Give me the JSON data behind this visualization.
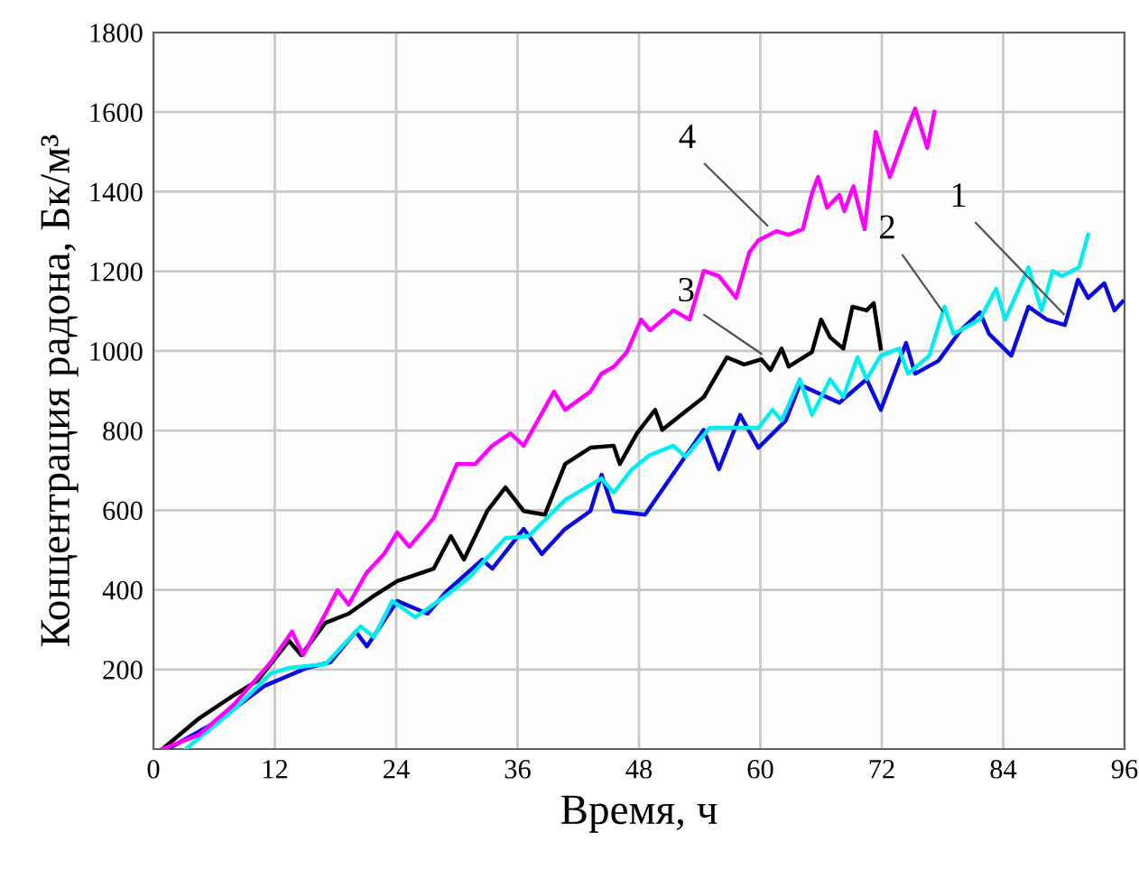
{
  "chart_data": {
    "type": "line",
    "xlabel": "Время, ч",
    "ylabel": "Концентрация радона, Бк/м³",
    "xlim": [
      0,
      96
    ],
    "xticks": [
      0,
      12,
      24,
      36,
      48,
      60,
      72,
      84,
      96
    ],
    "ylim": [
      0,
      1800
    ],
    "yticks": [
      200,
      400,
      600,
      800,
      1000,
      1200,
      1400,
      1600,
      1800
    ],
    "grid": true,
    "marker": "none",
    "line_style": "solid",
    "series": [
      {
        "color": "#0a0ae0",
        "x": [
          1.4,
          6.2,
          11,
          15.2,
          17.5,
          20,
          21.1,
          24.1,
          27.1,
          28.9,
          32.5,
          33.5,
          36.6,
          38.4,
          40.7,
          43.2,
          44.3,
          45.5,
          48.6,
          54.4,
          55.9,
          58,
          59.8,
          62.5,
          63.9,
          67.8,
          70.5,
          71.9,
          74.4,
          75.3,
          77.6,
          79.8,
          81.7,
          82.6,
          84.8,
          86.5,
          88.3,
          90.1,
          91.4,
          92.4,
          94,
          95,
          95.8
        ],
        "values": [
          0,
          68,
          159,
          204,
          218,
          295,
          258,
          372,
          340,
          394,
          476,
          453,
          553,
          490,
          553,
          598,
          689,
          598,
          589,
          802,
          703,
          839,
          757,
          825,
          915,
          870,
          929,
          852,
          1020,
          943,
          975,
          1052,
          1097,
          1043,
          988,
          1111,
          1079,
          1065,
          1179,
          1133,
          1170,
          1102,
          1124
        ]
      },
      {
        "color": "#00eef0",
        "x": [
          3.2,
          8,
          11.6,
          13.4,
          17,
          20.5,
          21.8,
          23.6,
          25.9,
          28.9,
          31.2,
          34.8,
          37.1,
          40.7,
          44.3,
          45.5,
          47.3,
          49.1,
          51.4,
          52.6,
          55,
          57.5,
          59.8,
          61.2,
          62.1,
          63.9,
          65.1,
          66.9,
          68.2,
          69.6,
          70.5,
          71.9,
          73.7,
          74.6,
          76.7,
          78.2,
          79.1,
          81.7,
          83.3,
          84.2,
          86.5,
          87.8,
          88.9,
          89.8,
          91.5,
          92.4
        ],
        "values": [
          0,
          100,
          190,
          204,
          213,
          308,
          281,
          372,
          331,
          385,
          431,
          530,
          535,
          626,
          680,
          644,
          703,
          739,
          762,
          734,
          807,
          807,
          807,
          852,
          825,
          929,
          839,
          929,
          884,
          984,
          929,
          988,
          1006,
          943,
          988,
          1111,
          1043,
          1079,
          1156,
          1079,
          1210,
          1102,
          1201,
          1188,
          1210,
          1292
        ]
      },
      {
        "color": "#000000",
        "x": [
          0.9,
          4.5,
          8,
          10.3,
          13.4,
          14.6,
          17,
          19.3,
          21.8,
          24.1,
          27.7,
          29.4,
          30.7,
          33,
          34.8,
          36.6,
          38.7,
          40.7,
          43.2,
          45.5,
          46.1,
          47.8,
          49.6,
          50.3,
          54.4,
          56.7,
          58.4,
          60.1,
          61,
          62.1,
          62.8,
          65.1,
          66,
          66.9,
          68.2,
          69.1,
          70.5,
          71.2,
          71.9
        ],
        "values": [
          0,
          77,
          136,
          172,
          272,
          236,
          317,
          340,
          385,
          422,
          453,
          535,
          476,
          598,
          657,
          598,
          589,
          716,
          757,
          762,
          716,
          793,
          852,
          802,
          884,
          984,
          966,
          979,
          952,
          1006,
          961,
          997,
          1079,
          1034,
          1006,
          1111,
          1102,
          1120,
          1006
        ]
      },
      {
        "color": "#ff00ff",
        "x": [
          0.9,
          4.5,
          8,
          11.6,
          13.7,
          14.8,
          17,
          18.2,
          19.3,
          21.1,
          22.8,
          24.1,
          25.3,
          27.7,
          30,
          31.8,
          33.5,
          35.3,
          36.6,
          39.6,
          40.7,
          43.2,
          44.3,
          45.5,
          46.8,
          48.2,
          49.1,
          51.4,
          53,
          54.4,
          55.9,
          57.6,
          58.9,
          59.8,
          61.6,
          62.8,
          64.2,
          65.1,
          65.7,
          66.6,
          67.8,
          68.3,
          69.2,
          70.3,
          71.4,
          72.8,
          74.6,
          75.3,
          76.5,
          77.2
        ],
        "values": [
          0,
          36,
          113,
          218,
          295,
          236,
          340,
          399,
          363,
          444,
          490,
          544,
          508,
          580,
          716,
          716,
          762,
          793,
          762,
          898,
          852,
          898,
          943,
          960,
          997,
          1079,
          1052,
          1102,
          1079,
          1201,
          1188,
          1133,
          1247,
          1278,
          1301,
          1292,
          1306,
          1396,
          1437,
          1360,
          1392,
          1351,
          1414,
          1306,
          1550,
          1437,
          1564,
          1609,
          1510,
          1600
        ]
      }
    ],
    "annotations": [
      {
        "text": "1",
        "x": 90,
        "y": 1092
      },
      {
        "text": "2",
        "x": 78,
        "y": 1100
      },
      {
        "text": "3",
        "x": 60.1,
        "y": 993
      },
      {
        "text": "4",
        "x": 60.7,
        "y": 1315
      }
    ]
  }
}
